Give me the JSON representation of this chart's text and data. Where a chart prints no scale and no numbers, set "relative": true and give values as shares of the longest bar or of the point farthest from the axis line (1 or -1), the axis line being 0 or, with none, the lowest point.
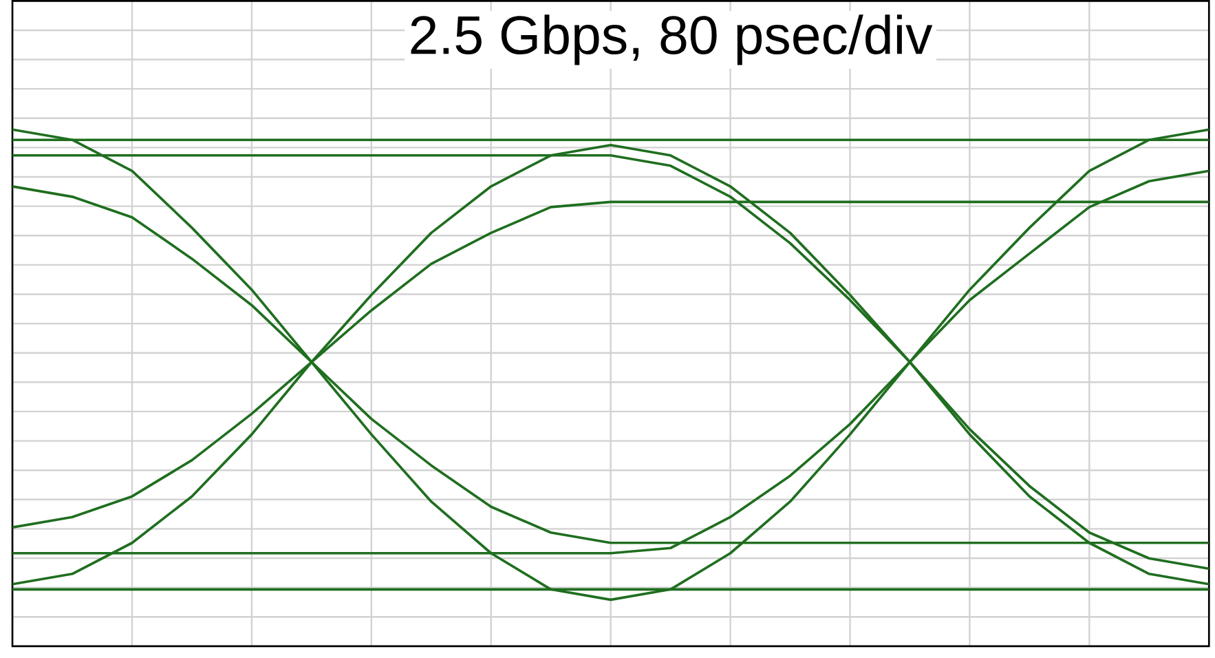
{
  "chart_data": {
    "type": "line",
    "title": "2.5 Gbps, 80 psec/div",
    "relative": true,
    "grid": true,
    "categories": [
      null,
      null,
      null,
      null,
      null,
      null,
      null,
      null,
      null,
      null,
      null,
      null,
      null,
      null,
      null,
      null,
      null,
      null,
      null,
      null,
      null
    ],
    "series": [
      {
        "color": "#1f6e1f",
        "values": [
          1,
          0.98,
          0.92,
          0.81,
          0.69,
          0.55,
          0.41,
          0.28,
          0.18,
          0.11,
          0.09,
          0.11,
          0.18,
          0.28,
          0.41,
          0.55,
          0.69,
          0.81,
          0.92,
          0.98,
          1
        ]
      },
      {
        "color": "#1f6e1f",
        "values": [
          0.12,
          0.14,
          0.2,
          0.29,
          0.41,
          0.55,
          0.68,
          0.8,
          0.89,
          0.95,
          0.97,
          0.95,
          0.89,
          0.8,
          0.68,
          0.55,
          0.41,
          0.29,
          0.2,
          0.14,
          0.12
        ]
      },
      {
        "color": "#1f6e1f",
        "values": [
          0.95,
          0.95,
          0.95,
          0.95,
          0.95,
          0.95,
          0.95,
          0.95,
          0.95,
          0.95,
          0.95,
          0.93,
          0.87,
          0.78,
          0.67,
          0.55,
          0.42,
          0.31,
          0.22,
          0.17,
          0.15
        ]
      },
      {
        "color": "#1f6e1f",
        "values": [
          0.18,
          0.18,
          0.18,
          0.18,
          0.18,
          0.18,
          0.18,
          0.18,
          0.18,
          0.18,
          0.18,
          0.19,
          0.25,
          0.33,
          0.43,
          0.55,
          0.67,
          0.76,
          0.85,
          0.9,
          0.92
        ]
      },
      {
        "color": "#1f6e1f",
        "values": [
          0.89,
          0.87,
          0.83,
          0.75,
          0.66,
          0.55,
          0.44,
          0.35,
          0.27,
          0.22,
          0.2,
          0.2,
          0.2,
          0.2,
          0.2,
          0.2,
          0.2,
          0.2,
          0.2,
          0.2,
          0.2
        ]
      },
      {
        "color": "#1f6e1f",
        "values": [
          0.23,
          0.25,
          0.29,
          0.36,
          0.45,
          0.55,
          0.65,
          0.74,
          0.8,
          0.85,
          0.86,
          0.86,
          0.86,
          0.86,
          0.86,
          0.86,
          0.86,
          0.86,
          0.86,
          0.86,
          0.86
        ]
      },
      {
        "color": "#1f6e1f",
        "values": [
          0.98,
          0.98,
          0.98,
          0.98,
          0.98,
          0.98,
          0.98,
          0.98,
          0.98,
          0.98,
          0.98,
          0.98,
          0.98,
          0.98,
          0.98,
          0.98,
          0.98,
          0.98,
          0.98,
          0.98,
          0.98
        ]
      },
      {
        "color": "#1f6e1f",
        "values": [
          0.11,
          0.11,
          0.11,
          0.11,
          0.11,
          0.11,
          0.11,
          0.11,
          0.11,
          0.11,
          0.11,
          0.11,
          0.11,
          0.11,
          0.11,
          0.11,
          0.11,
          0.11,
          0.11,
          0.11,
          0.11
        ]
      }
    ]
  }
}
